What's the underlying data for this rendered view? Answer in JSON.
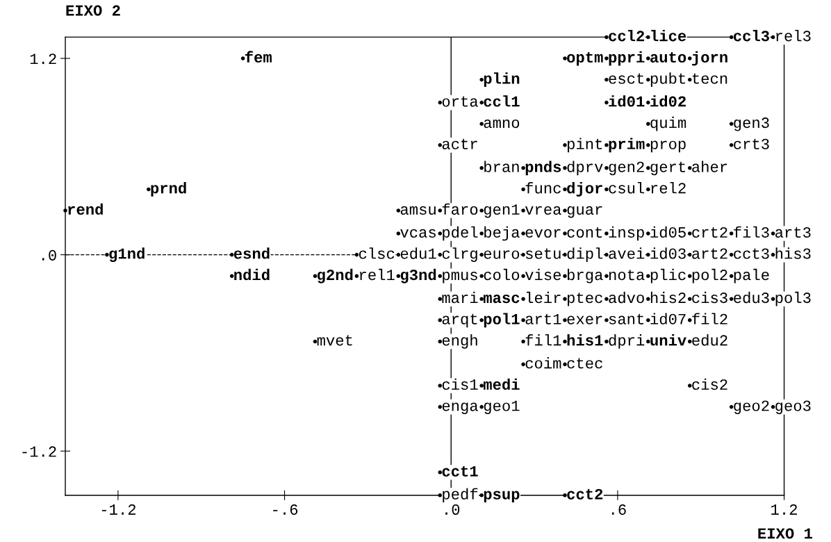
{
  "chart_data": {
    "type": "scatter",
    "xlabel": "EIXO 1",
    "ylabel": "EIXO 2",
    "xlim": [
      -1.39,
      1.2
    ],
    "ylim": [
      -1.47,
      1.33
    ],
    "xticks": [
      {
        "value": -1.2,
        "label": "-1.2"
      },
      {
        "value": -0.6,
        "label": "-.6"
      },
      {
        "value": 0,
        "label": ".0"
      },
      {
        "value": 0.6,
        "label": ".6"
      },
      {
        "value": 1.2,
        "label": "1.2"
      }
    ],
    "yticks": [
      {
        "value": 1.2,
        "label": "1.2"
      },
      {
        "value": 0,
        "label": ".0"
      },
      {
        "value": -1.2,
        "label": "-1.2"
      }
    ],
    "grid": false,
    "marker": "circle",
    "ref_lines": [
      {
        "axis": "x",
        "value": 0,
        "color": "#000000",
        "line_style": "solid"
      },
      {
        "axis": "y",
        "value": 0,
        "color": "#000000",
        "line_style": "dashed"
      }
    ],
    "series": [
      {
        "color": "#000000",
        "x": [
          -0.75,
          0.41,
          0.56,
          0.71,
          0.86,
          0.11,
          0.11,
          0.56,
          0.71,
          0.56,
          0.26,
          -1.09,
          0.41,
          -1.39,
          -1.24,
          -0.79,
          -0.79,
          -0.49,
          -0.19,
          0.11,
          0.11,
          0.41,
          0.71,
          0.11,
          -0.04,
          0.11,
          0.41,
          0.56,
          0.71,
          1.01
        ],
        "values": [
          1.2,
          1.2,
          1.2,
          1.2,
          1.2,
          1.07,
          0.93,
          0.93,
          0.93,
          0.67,
          0.53,
          0.4,
          0.4,
          0.27,
          0,
          0,
          -0.13,
          -0.13,
          -0.13,
          -0.27,
          -0.4,
          -0.53,
          -0.53,
          -0.8,
          -1.33,
          -1.47,
          -1.47,
          1.33,
          1.33,
          1.33
        ],
        "value_labels": [
          "fem",
          "optm",
          "ppri",
          "auto",
          "jorn",
          "plin",
          "ccl1",
          "id01",
          "id02",
          "prim",
          "pnds",
          "prnd",
          "djor",
          "rend",
          "g1nd",
          "esnd",
          "ndid",
          "g2nd",
          "g3nd",
          "masc",
          "pol1",
          "his1",
          "univ",
          "medi",
          "cct1",
          "psup",
          "cct2",
          "ccl2",
          "lice",
          "ccl3"
        ]
      },
      {
        "color": "#000000",
        "x": [
          0.56,
          0.71,
          0.86,
          -0.04,
          0.11,
          0.71,
          1.01,
          -0.04,
          0.41,
          0.71,
          1.01,
          0.11,
          0.41,
          0.56,
          0.71,
          0.86,
          0.26,
          0.56,
          0.71,
          -0.19,
          -0.04,
          0.11,
          0.26,
          0.41,
          -0.19,
          -0.04,
          0.11,
          0.26,
          0.41,
          0.56,
          0.71,
          0.86,
          1.01,
          1.16,
          -0.34,
          -0.19,
          -0.04,
          0.11,
          0.26,
          0.41,
          0.56,
          0.71,
          0.86,
          1.01,
          1.16,
          -0.34,
          -0.04,
          0.11,
          0.26,
          0.41,
          0.56,
          0.71,
          0.86,
          1.01,
          -0.04,
          0.26,
          0.41,
          0.56,
          0.71,
          0.86,
          1.01,
          1.16,
          -0.04,
          0.26,
          0.41,
          0.56,
          0.71,
          0.86,
          -0.49,
          -0.04,
          0.26,
          0.56,
          0.86,
          0.26,
          0.41,
          -0.04,
          0.86,
          -0.04,
          0.11,
          1.01,
          1.16,
          1.16,
          -0.04
        ],
        "values": [
          1.07,
          1.07,
          1.07,
          0.93,
          0.8,
          0.8,
          0.8,
          0.67,
          0.67,
          0.67,
          0.67,
          0.53,
          0.53,
          0.53,
          0.53,
          0.53,
          0.4,
          0.4,
          0.4,
          0.27,
          0.27,
          0.27,
          0.27,
          0.27,
          0.13,
          0.13,
          0.13,
          0.13,
          0.13,
          0.13,
          0.13,
          0.13,
          0.13,
          0.13,
          0,
          0,
          0,
          0,
          0,
          0,
          0,
          0,
          0,
          0,
          0,
          -0.13,
          -0.13,
          -0.13,
          -0.13,
          -0.13,
          -0.13,
          -0.13,
          -0.13,
          -0.13,
          -0.27,
          -0.27,
          -0.27,
          -0.27,
          -0.27,
          -0.27,
          -0.27,
          -0.27,
          -0.4,
          -0.4,
          -0.4,
          -0.4,
          -0.4,
          -0.4,
          -0.53,
          -0.53,
          -0.53,
          -0.53,
          -0.53,
          -0.67,
          -0.67,
          -0.8,
          -0.8,
          -0.93,
          -0.93,
          -0.93,
          -0.93,
          1.33,
          -1.47
        ],
        "value_labels": [
          "esct",
          "pubt",
          "tecn",
          "orta",
          "amno",
          "quim",
          "gen3",
          "actr",
          "pint",
          "prop",
          "crt3",
          "bran",
          "dprv",
          "gen2",
          "gert",
          "aher",
          "func",
          "csul",
          "rel2",
          "amsu",
          "faro",
          "gen1",
          "vrea",
          "guar",
          "vcas",
          "pdel",
          "beja",
          "evor",
          "cont",
          "insp",
          "id05",
          "crt2",
          "fil3",
          "art3",
          "clsc",
          "edu1",
          "clrg",
          "euro",
          "setu",
          "dipl",
          "avei",
          "id03",
          "art2",
          "cct3",
          "his3",
          "rel1",
          "pmus",
          "colo",
          "vise",
          "brga",
          "nota",
          "plic",
          "pol2",
          "pale",
          "mari",
          "leir",
          "ptec",
          "advo",
          "his2",
          "cis3",
          "edu3",
          "pol3",
          "arqt",
          "art1",
          "exer",
          "sant",
          "id07",
          "fil2",
          "mvet",
          "engh",
          "fil1",
          "dpri",
          "edu2",
          "coim",
          "ctec",
          "cis1",
          "cis2",
          "enga",
          "geo1",
          "geo2",
          "geo3",
          "rel3",
          "pedf"
        ]
      }
    ]
  }
}
